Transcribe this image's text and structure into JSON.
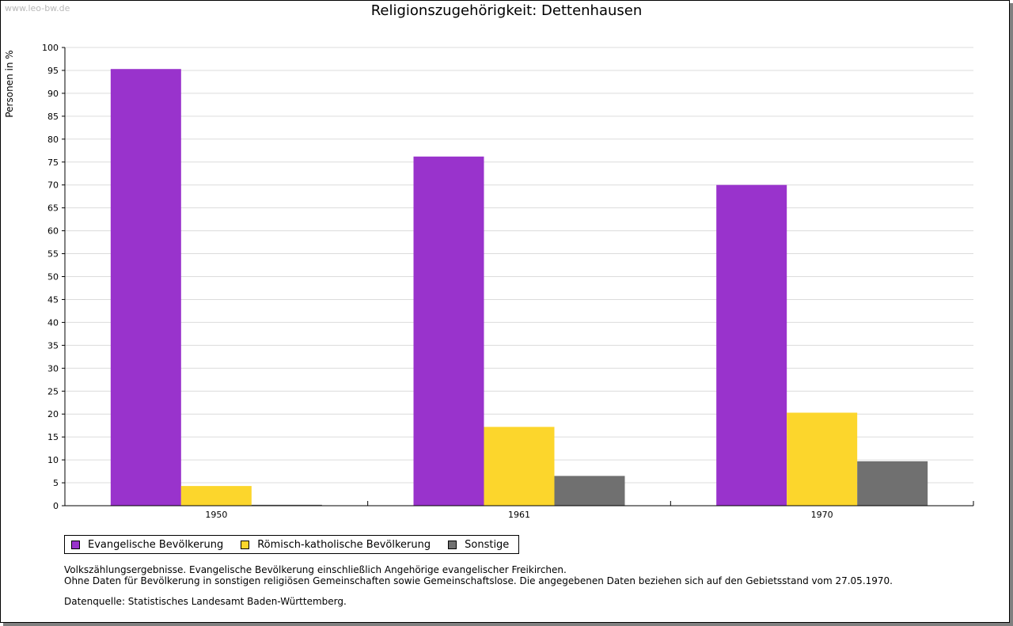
{
  "watermark": "www.leo-bw.de",
  "chart_data": {
    "type": "bar",
    "title": "Religionszugehörigkeit: Dettenhausen",
    "ylabel": "Personen in %",
    "xlabel": "",
    "ylim": [
      0,
      100
    ],
    "yticks": [
      0,
      5,
      10,
      15,
      20,
      25,
      30,
      35,
      40,
      45,
      50,
      55,
      60,
      65,
      70,
      75,
      80,
      85,
      90,
      95,
      100
    ],
    "categories": [
      "1950",
      "1961",
      "1970"
    ],
    "series": [
      {
        "name": "Evangelische Bevölkerung",
        "color": "#9933cc",
        "values": [
          95.3,
          76.2,
          70.0
        ]
      },
      {
        "name": "Römisch-katholische Bevölkerung",
        "color": "#fcd62c",
        "values": [
          4.3,
          17.2,
          20.3
        ]
      },
      {
        "name": "Sonstige",
        "color": "#707070",
        "values": [
          0.2,
          6.5,
          9.7
        ]
      }
    ],
    "grid": true,
    "legend_position": "bottom-left"
  },
  "notes": {
    "line1": "Volkszählungsergebnisse. Evangelische Bevölkerung einschließlich Angehörige evangelischer Freikirchen.",
    "line2": "Ohne Daten für Bevölkerung in sonstigen religiösen Gemeinschaften sowie Gemeinschaftslose. Die angegebenen Daten beziehen sich auf den Gebietsstand vom 27.05.1970.",
    "source": "Datenquelle: Statistisches Landesamt Baden-Württemberg."
  }
}
